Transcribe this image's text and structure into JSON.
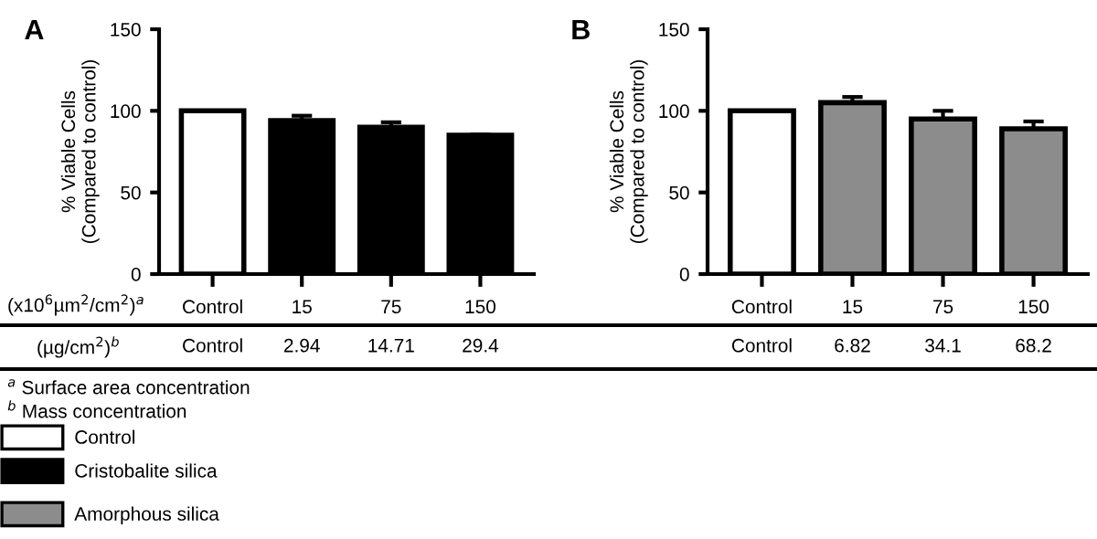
{
  "chart_data": [
    {
      "type": "bar",
      "title": "A",
      "ylabel": "% Viable Cells\n(Compared to control)",
      "categories": [
        "Control",
        "15",
        "75",
        "150"
      ],
      "ylim": [
        0,
        150
      ],
      "yticks": [
        0,
        50,
        100,
        150
      ],
      "grid": false,
      "legend": "bottom left",
      "series": [
        {
          "name": "Control",
          "color": "#ffffff",
          "values": [
            100,
            null,
            null,
            null
          ]
        },
        {
          "name": "Cristobalite silica",
          "color": "#000000",
          "values": [
            null,
            94,
            90,
            85
          ],
          "errors": [
            null,
            3,
            3,
            0.5
          ]
        }
      ],
      "annotations": [
        "(x10$^{6}$µm$^{2}$/cm$^{2}$)$^{a}$",
        "(µg/cm$^{2}$)$^{b}$",
        "Control",
        "2.94",
        "14.71",
        "29.4",
        "$^{a}$ Surface area concentration",
        "$^{b}$ Mass concentration"
      ]
    },
    {
      "type": "bar",
      "title": "B",
      "ylabel": "% Viable Cells\n(Compared to control)",
      "categories": [
        "Control",
        "15",
        "75",
        "150"
      ],
      "ylim": [
        0,
        150
      ],
      "yticks": [
        0,
        50,
        100,
        150
      ],
      "grid": false,
      "legend": "bottom left",
      "series": [
        {
          "color": "#ffffff",
          "values": [
            100,
            null,
            null,
            null
          ]
        },
        {
          "name": "Amorphous silica",
          "color": "#8c8c8c",
          "values": [
            null,
            105,
            95,
            89
          ],
          "errors": [
            null,
            3.5,
            5,
            4.5
          ]
        }
      ],
      "annotations": [
        "Control",
        "6.82",
        "34.1",
        "68.2"
      ]
    }
  ]
}
